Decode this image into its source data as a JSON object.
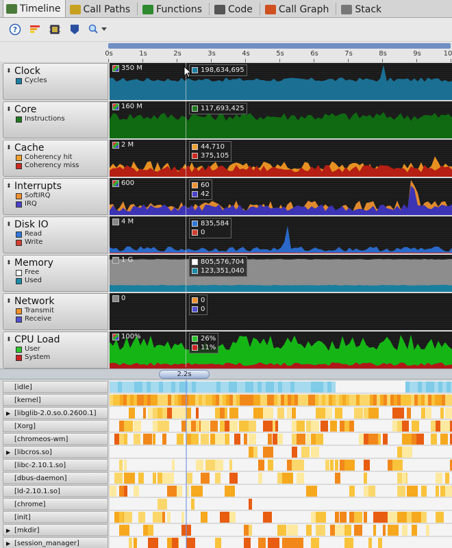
{
  "tabs": [
    {
      "label": "Timeline",
      "icon": "timeline-icon",
      "active": true
    },
    {
      "label": "Call Paths",
      "icon": "call-paths-icon"
    },
    {
      "label": "Functions",
      "icon": "functions-icon"
    },
    {
      "label": "Code",
      "icon": "code-icon"
    },
    {
      "label": "Call Graph",
      "icon": "call-graph-icon"
    },
    {
      "label": "Stack",
      "icon": "stack-icon"
    }
  ],
  "toolbar": {
    "icons": [
      "help-icon",
      "flame-icon",
      "chip-icon",
      "marker-icon",
      "zoom-icon"
    ]
  },
  "ruler": {
    "labels": [
      "0s",
      "1s",
      "2s",
      "3s",
      "4s",
      "5s",
      "6s",
      "7s",
      "8s",
      "9s",
      "10"
    ]
  },
  "tracks": [
    {
      "title": "Clock",
      "scale": "350 M",
      "legend": [
        {
          "name": "Cycles",
          "color": "#1b7fa6"
        }
      ],
      "values": [
        "198,634,695"
      ],
      "colors": [
        "#1b6f93"
      ]
    },
    {
      "title": "Core",
      "scale": "160 M",
      "legend": [
        {
          "name": "Instructions",
          "color": "#1f7a1f"
        }
      ],
      "values": [
        "117,693,425"
      ],
      "colors": [
        "#0f6a12"
      ]
    },
    {
      "title": "Cache",
      "scale": "2 M",
      "legend": [
        {
          "name": "Coherency hit",
          "color": "#f0a030"
        },
        {
          "name": "Coherency miss",
          "color": "#cc2a20"
        }
      ],
      "values": [
        "44,710",
        "375,105"
      ],
      "colors": [
        "#e79022",
        "#b51f14"
      ]
    },
    {
      "title": "Interrupts",
      "scale": "600",
      "legend": [
        {
          "name": "SoftIRQ",
          "color": "#f09030"
        },
        {
          "name": "IRQ",
          "color": "#4a40c8"
        }
      ],
      "values": [
        "60",
        "42"
      ],
      "colors": [
        "#e08a2e",
        "#3c34b4"
      ]
    },
    {
      "title": "Disk IO",
      "scale": "4 M",
      "legend": [
        {
          "name": "Read",
          "color": "#2f78d8"
        },
        {
          "name": "Write",
          "color": "#d23e30"
        }
      ],
      "values": [
        "835,584",
        "0"
      ],
      "colors": [
        "#2a69c9",
        "#c43228"
      ]
    },
    {
      "title": "Memory",
      "scale": "1 G",
      "legend": [
        {
          "name": "Free",
          "color": "#ffffff"
        },
        {
          "name": "Used",
          "color": "#1a8aa8"
        }
      ],
      "values": [
        "805,576,704",
        "123,351,040"
      ],
      "colors": [
        "#8a8a8a",
        "#1a7f9e"
      ]
    },
    {
      "title": "Network",
      "scale": "0",
      "legend": [
        {
          "name": "Transmit",
          "color": "#f0902a"
        },
        {
          "name": "Receive",
          "color": "#5050d0"
        }
      ],
      "values": [
        "0",
        "0"
      ],
      "colors": [
        "#e08a2e",
        "#4040c0"
      ]
    },
    {
      "title": "CPU Load",
      "scale": "100%",
      "legend": [
        {
          "name": "User",
          "color": "#2ec42e"
        },
        {
          "name": "System",
          "color": "#cc2222"
        }
      ],
      "values": [
        "26%",
        "11%"
      ],
      "colors": [
        "#16b516",
        "#b01818"
      ]
    }
  ],
  "splitter": {
    "label": "2.2s"
  },
  "processes": [
    {
      "name": "[idle]",
      "expandable": false
    },
    {
      "name": "[kernel]",
      "expandable": false
    },
    {
      "name": "[libglib-2.0.so.0.2600.1]",
      "expandable": true
    },
    {
      "name": "[Xorg]",
      "expandable": false
    },
    {
      "name": "[chromeos-wm]",
      "expandable": false
    },
    {
      "name": "[libcros.so]",
      "expandable": true
    },
    {
      "name": "[libc-2.10.1.so]",
      "expandable": false
    },
    {
      "name": "[dbus-daemon]",
      "expandable": false
    },
    {
      "name": "[ld-2.10.1.so]",
      "expandable": false
    },
    {
      "name": "[chrome]",
      "expandable": false
    },
    {
      "name": "[init]",
      "expandable": false
    },
    {
      "name": "[mkdir]",
      "expandable": true
    },
    {
      "name": "[session_manager]",
      "expandable": true
    }
  ]
}
